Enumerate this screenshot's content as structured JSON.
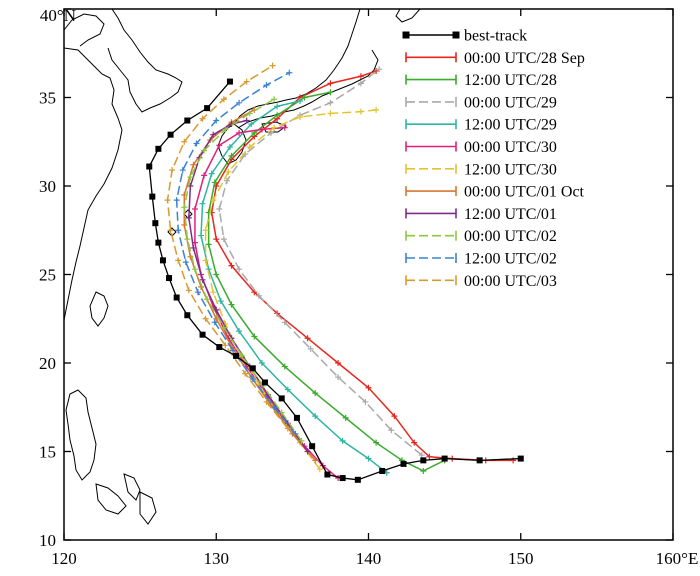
{
  "chart_data": {
    "type": "line",
    "title": "",
    "xlabel": "",
    "ylabel": "",
    "xlim": [
      120,
      160
    ],
    "ylim": [
      10,
      40
    ],
    "x_ticks": [
      {
        "value": 120,
        "label": "120"
      },
      {
        "value": 130,
        "label": "130"
      },
      {
        "value": 140,
        "label": "140"
      },
      {
        "value": 150,
        "label": "150"
      },
      {
        "value": 160,
        "label": "160°E"
      }
    ],
    "y_ticks": [
      {
        "value": 10,
        "label": "10"
      },
      {
        "value": 15,
        "label": "15"
      },
      {
        "value": 20,
        "label": "20"
      },
      {
        "value": 25,
        "label": "25"
      },
      {
        "value": 30,
        "label": "30"
      },
      {
        "value": 35,
        "label": "35"
      },
      {
        "value": 40,
        "label": "40°N"
      }
    ],
    "legend_position": "top-right",
    "series": [
      {
        "name": "best-track",
        "color": "#000000",
        "marker": "square",
        "dash": "solid",
        "points": [
          [
            150.0,
            14.6
          ],
          [
            147.3,
            14.5
          ],
          [
            145.0,
            14.6
          ],
          [
            143.6,
            14.5
          ],
          [
            142.3,
            14.3
          ],
          [
            140.9,
            13.9
          ],
          [
            139.3,
            13.4
          ],
          [
            138.3,
            13.5
          ],
          [
            137.3,
            13.7
          ],
          [
            136.3,
            15.3
          ],
          [
            135.3,
            16.9
          ],
          [
            134.3,
            18.0
          ],
          [
            133.2,
            18.9
          ],
          [
            132.4,
            19.7
          ],
          [
            131.3,
            20.4
          ],
          [
            130.2,
            20.9
          ],
          [
            129.1,
            21.6
          ],
          [
            128.1,
            22.7
          ],
          [
            127.4,
            23.7
          ],
          [
            126.9,
            24.8
          ],
          [
            126.5,
            25.8
          ],
          [
            126.2,
            26.8
          ],
          [
            126.0,
            27.9
          ],
          [
            125.8,
            29.4
          ],
          [
            125.6,
            31.1
          ],
          [
            126.2,
            32.1
          ],
          [
            127.0,
            32.9
          ],
          [
            128.1,
            33.7
          ],
          [
            129.4,
            34.4
          ],
          [
            130.9,
            35.9
          ]
        ]
      },
      {
        "name": "00:00 UTC/28 Sep",
        "color": "#e8261e",
        "marker": "plus",
        "dash": "solid",
        "points": [
          [
            149.5,
            14.5
          ],
          [
            147.7,
            14.5
          ],
          [
            145.5,
            14.6
          ],
          [
            144.0,
            14.7
          ],
          [
            143.0,
            15.5
          ],
          [
            141.7,
            17.0
          ],
          [
            140.0,
            18.6
          ],
          [
            138.0,
            20.0
          ],
          [
            136.0,
            21.4
          ],
          [
            134.0,
            22.8
          ],
          [
            132.5,
            24.0
          ],
          [
            131.0,
            25.5
          ],
          [
            130.0,
            27.0
          ],
          [
            129.7,
            28.5
          ],
          [
            130.0,
            30.0
          ],
          [
            131.0,
            31.5
          ],
          [
            132.5,
            32.8
          ],
          [
            134.0,
            33.8
          ],
          [
            135.5,
            35.0
          ],
          [
            137.5,
            35.8
          ],
          [
            139.5,
            36.2
          ],
          [
            140.5,
            36.5
          ]
        ]
      },
      {
        "name": "12:00 UTC/28",
        "color": "#3aab2c",
        "marker": "plus",
        "dash": "solid",
        "points": [
          [
            145.0,
            14.5
          ],
          [
            143.6,
            13.9
          ],
          [
            142.2,
            14.5
          ],
          [
            140.5,
            15.5
          ],
          [
            138.5,
            16.9
          ],
          [
            136.5,
            18.3
          ],
          [
            134.5,
            19.8
          ],
          [
            132.5,
            21.5
          ],
          [
            131.0,
            23.3
          ],
          [
            130.0,
            25.0
          ],
          [
            129.5,
            26.7
          ],
          [
            129.5,
            28.5
          ],
          [
            129.9,
            30.2
          ],
          [
            131.0,
            31.7
          ],
          [
            132.5,
            33.0
          ],
          [
            134.0,
            34.0
          ],
          [
            135.8,
            35.0
          ],
          [
            137.5,
            35.3
          ]
        ]
      },
      {
        "name": "00:00 UTC/29",
        "color": "#a9a9a9",
        "marker": "plus",
        "dash": "dash",
        "points": [
          [
            143.5,
            14.8
          ],
          [
            141.5,
            16.2
          ],
          [
            139.8,
            17.8
          ],
          [
            138.0,
            19.2
          ],
          [
            136.2,
            20.8
          ],
          [
            134.5,
            22.3
          ],
          [
            132.8,
            23.8
          ],
          [
            131.5,
            25.3
          ],
          [
            130.5,
            27.0
          ],
          [
            130.2,
            28.7
          ],
          [
            130.7,
            30.3
          ],
          [
            131.9,
            31.8
          ],
          [
            133.6,
            33.0
          ],
          [
            135.5,
            34.0
          ],
          [
            137.5,
            34.7
          ],
          [
            139.5,
            35.8
          ],
          [
            140.7,
            36.6
          ]
        ]
      },
      {
        "name": "12:00 UTC/29",
        "color": "#2eb6a3",
        "marker": "plus",
        "dash": "solid",
        "points": [
          [
            141.2,
            13.8
          ],
          [
            140.0,
            14.6
          ],
          [
            138.3,
            15.6
          ],
          [
            136.5,
            17.0
          ],
          [
            134.7,
            18.5
          ],
          [
            133.0,
            20.0
          ],
          [
            131.5,
            21.8
          ],
          [
            130.3,
            23.5
          ],
          [
            129.5,
            25.3
          ],
          [
            129.0,
            27.2
          ],
          [
            129.1,
            29.0
          ],
          [
            129.7,
            30.7
          ],
          [
            130.9,
            32.2
          ],
          [
            132.3,
            33.5
          ],
          [
            134.0,
            34.5
          ],
          [
            135.5,
            34.8
          ]
        ]
      },
      {
        "name": "00:00 UTC/30",
        "color": "#e1207b",
        "marker": "plus",
        "dash": "solid",
        "points": [
          [
            138.0,
            13.5
          ],
          [
            137.0,
            14.2
          ],
          [
            135.8,
            15.3
          ],
          [
            134.5,
            16.7
          ],
          [
            133.3,
            18.2
          ],
          [
            132.0,
            19.8
          ],
          [
            130.8,
            21.4
          ],
          [
            129.8,
            23.2
          ],
          [
            129.0,
            25.0
          ],
          [
            128.6,
            26.8
          ],
          [
            128.6,
            28.7
          ],
          [
            129.2,
            30.6
          ],
          [
            130.2,
            32.3
          ],
          [
            131.5,
            33.0
          ],
          [
            133.0,
            33.2
          ],
          [
            134.5,
            33.3
          ]
        ]
      },
      {
        "name": "12:00 UTC/30",
        "color": "#e3c42e",
        "marker": "plus",
        "dash": "dash",
        "points": [
          [
            136.8,
            14.0
          ],
          [
            135.5,
            15.5
          ],
          [
            134.0,
            17.2
          ],
          [
            132.8,
            18.8
          ],
          [
            131.6,
            20.5
          ],
          [
            130.6,
            22.2
          ],
          [
            129.8,
            24.0
          ],
          [
            129.3,
            25.8
          ],
          [
            129.3,
            27.5
          ],
          [
            129.8,
            29.2
          ],
          [
            130.8,
            30.8
          ],
          [
            132.2,
            32.2
          ],
          [
            133.8,
            33.3
          ],
          [
            135.5,
            33.9
          ],
          [
            137.5,
            34.1
          ],
          [
            139.5,
            34.2
          ],
          [
            140.5,
            34.3
          ]
        ]
      },
      {
        "name": "00:00 UTC/01 Oct",
        "color": "#d9772e",
        "marker": "plus",
        "dash": "solid",
        "points": [
          [
            136.5,
            14.5
          ],
          [
            135.0,
            16.0
          ],
          [
            133.6,
            17.6
          ],
          [
            132.3,
            19.2
          ],
          [
            131.1,
            20.8
          ],
          [
            130.0,
            22.5
          ],
          [
            129.0,
            24.3
          ],
          [
            128.3,
            26.0
          ],
          [
            127.9,
            27.8
          ],
          [
            127.9,
            29.5
          ],
          [
            128.5,
            31.2
          ],
          [
            129.6,
            32.6
          ],
          [
            131.0,
            33.6
          ],
          [
            132.5,
            34.3
          ]
        ]
      },
      {
        "name": "12:00 UTC/01",
        "color": "#7e2b8e",
        "marker": "plus",
        "dash": "solid",
        "points": [
          [
            136.0,
            15.0
          ],
          [
            134.7,
            16.6
          ],
          [
            133.4,
            18.2
          ],
          [
            132.2,
            19.8
          ],
          [
            131.0,
            21.4
          ],
          [
            130.0,
            23.0
          ],
          [
            129.1,
            24.7
          ],
          [
            128.5,
            26.5
          ],
          [
            128.2,
            28.2
          ],
          [
            128.3,
            30.0
          ],
          [
            128.9,
            31.6
          ],
          [
            129.8,
            32.9
          ],
          [
            131.0,
            33.5
          ],
          [
            132.0,
            33.7
          ]
        ]
      },
      {
        "name": "00:00 UTC/02",
        "color": "#8ec63f",
        "marker": "plus",
        "dash": "dash",
        "points": [
          [
            135.6,
            15.6
          ],
          [
            134.3,
            17.2
          ],
          [
            133.0,
            18.8
          ],
          [
            131.7,
            20.4
          ],
          [
            130.5,
            22.0
          ],
          [
            129.4,
            23.6
          ],
          [
            128.6,
            25.3
          ],
          [
            128.1,
            27.0
          ],
          [
            127.9,
            28.8
          ],
          [
            128.3,
            30.5
          ],
          [
            129.2,
            32.0
          ],
          [
            130.6,
            33.2
          ],
          [
            132.2,
            34.1
          ],
          [
            133.8,
            34.9
          ]
        ]
      },
      {
        "name": "12:00 UTC/02",
        "color": "#3a82d1",
        "marker": "plus",
        "dash": "dash",
        "points": [
          [
            135.2,
            16.0
          ],
          [
            133.8,
            17.5
          ],
          [
            132.4,
            19.1
          ],
          [
            131.1,
            20.7
          ],
          [
            129.9,
            22.3
          ],
          [
            128.8,
            24.0
          ],
          [
            128.0,
            25.7
          ],
          [
            127.5,
            27.5
          ],
          [
            127.4,
            29.2
          ],
          [
            127.8,
            30.9
          ],
          [
            128.7,
            32.4
          ],
          [
            130.0,
            33.7
          ],
          [
            131.5,
            34.7
          ],
          [
            133.3,
            35.7
          ],
          [
            134.8,
            36.4
          ]
        ]
      },
      {
        "name": "00:00 UTC/03",
        "color": "#d99a2e",
        "marker": "plus",
        "dash": "dash",
        "points": [
          [
            134.7,
            16.3
          ],
          [
            133.3,
            17.8
          ],
          [
            131.9,
            19.4
          ],
          [
            130.6,
            21.0
          ],
          [
            129.3,
            22.5
          ],
          [
            128.2,
            24.1
          ],
          [
            127.5,
            25.8
          ],
          [
            127.0,
            27.5
          ],
          [
            126.8,
            29.2
          ],
          [
            127.1,
            30.9
          ],
          [
            127.9,
            32.5
          ],
          [
            129.1,
            33.8
          ],
          [
            130.5,
            34.9
          ],
          [
            132.0,
            35.9
          ],
          [
            133.7,
            36.8
          ]
        ]
      }
    ]
  }
}
